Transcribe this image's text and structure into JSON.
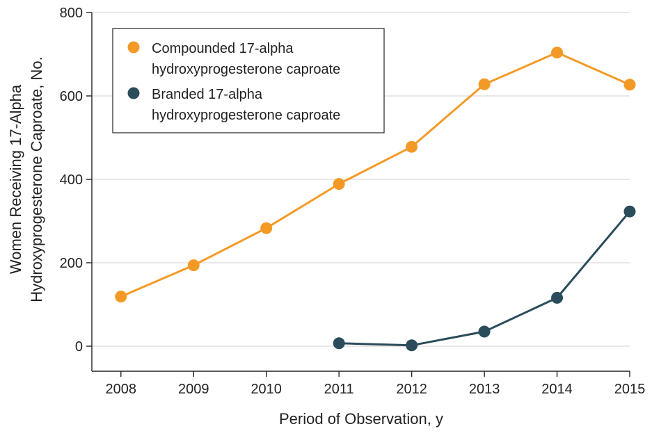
{
  "chart_data": {
    "type": "line",
    "title": "",
    "xlabel": "Period of Observation, y",
    "ylabel_lines": [
      "Women Receiving 17-Alpha",
      "Hydroxyprogesterone Caproate, No."
    ],
    "x": [
      2008,
      2009,
      2010,
      2011,
      2012,
      2013,
      2014,
      2015
    ],
    "xlim": [
      2007.6,
      2015
    ],
    "ylim": [
      -60,
      800
    ],
    "yticks": [
      0,
      200,
      400,
      600,
      800
    ],
    "grid": "horizontal",
    "legend_position": "top-left",
    "series": [
      {
        "name_lines": [
          "Compounded 17-alpha",
          "hydroxyprogesterone caproate"
        ],
        "color": "#f39a26",
        "points": [
          {
            "x": 2008,
            "y": 119
          },
          {
            "x": 2009,
            "y": 194
          },
          {
            "x": 2010,
            "y": 283
          },
          {
            "x": 2011,
            "y": 389
          },
          {
            "x": 2012,
            "y": 478
          },
          {
            "x": 2013,
            "y": 628
          },
          {
            "x": 2014,
            "y": 704
          },
          {
            "x": 2015,
            "y": 627
          }
        ]
      },
      {
        "name_lines": [
          "Branded 17-alpha",
          "hydroxyprogesterone caproate"
        ],
        "color": "#2b4c5a",
        "points": [
          {
            "x": 2011,
            "y": 7
          },
          {
            "x": 2012,
            "y": 2
          },
          {
            "x": 2013,
            "y": 35
          },
          {
            "x": 2014,
            "y": 116
          },
          {
            "x": 2015,
            "y": 323
          }
        ]
      }
    ]
  }
}
